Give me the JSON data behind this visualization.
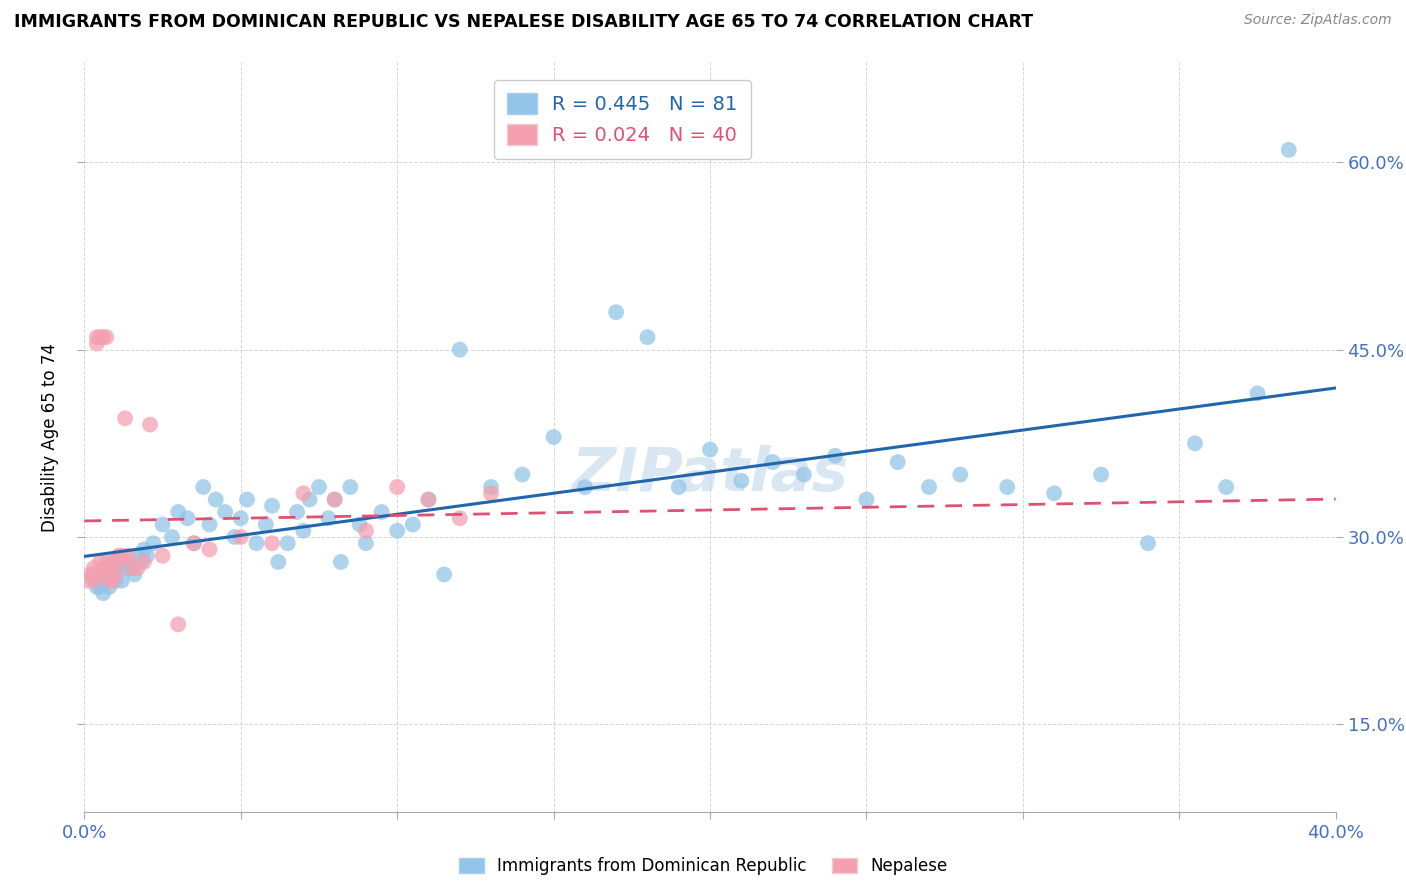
{
  "title": "IMMIGRANTS FROM DOMINICAN REPUBLIC VS NEPALESE DISABILITY AGE 65 TO 74 CORRELATION CHART",
  "source": "Source: ZipAtlas.com",
  "ylabel": "Disability Age 65 to 74",
  "xlim": [
    0.0,
    0.4
  ],
  "ylim": [
    0.08,
    0.68
  ],
  "yticks": [
    0.15,
    0.3,
    0.45,
    0.6
  ],
  "yticklabels": [
    "15.0%",
    "30.0%",
    "45.0%",
    "60.0%"
  ],
  "blue_R": 0.445,
  "blue_N": 81,
  "pink_R": 0.024,
  "pink_N": 40,
  "blue_color": "#92c5e8",
  "pink_color": "#f4a0b0",
  "blue_line_color": "#2166ac",
  "pink_line_color": "#e05070",
  "legend_blue_label": "Immigrants from Dominican Republic",
  "legend_pink_label": "Nepalese",
  "watermark": "ZIPatlas",
  "blue_points_x": [
    0.003,
    0.004,
    0.005,
    0.005,
    0.006,
    0.006,
    0.007,
    0.007,
    0.008,
    0.008,
    0.009,
    0.01,
    0.01,
    0.011,
    0.012,
    0.013,
    0.014,
    0.015,
    0.016,
    0.017,
    0.018,
    0.019,
    0.02,
    0.022,
    0.025,
    0.028,
    0.03,
    0.033,
    0.035,
    0.038,
    0.04,
    0.042,
    0.045,
    0.048,
    0.05,
    0.052,
    0.055,
    0.058,
    0.06,
    0.062,
    0.065,
    0.068,
    0.07,
    0.072,
    0.075,
    0.078,
    0.08,
    0.082,
    0.085,
    0.088,
    0.09,
    0.095,
    0.1,
    0.105,
    0.11,
    0.115,
    0.12,
    0.13,
    0.14,
    0.15,
    0.16,
    0.17,
    0.18,
    0.19,
    0.2,
    0.21,
    0.22,
    0.23,
    0.24,
    0.25,
    0.26,
    0.27,
    0.28,
    0.295,
    0.31,
    0.325,
    0.34,
    0.355,
    0.365,
    0.375,
    0.385
  ],
  "blue_points_y": [
    0.27,
    0.26,
    0.265,
    0.26,
    0.255,
    0.27,
    0.265,
    0.275,
    0.26,
    0.27,
    0.275,
    0.265,
    0.275,
    0.28,
    0.265,
    0.28,
    0.275,
    0.275,
    0.27,
    0.285,
    0.28,
    0.29,
    0.285,
    0.295,
    0.31,
    0.3,
    0.32,
    0.315,
    0.295,
    0.34,
    0.31,
    0.33,
    0.32,
    0.3,
    0.315,
    0.33,
    0.295,
    0.31,
    0.325,
    0.28,
    0.295,
    0.32,
    0.305,
    0.33,
    0.34,
    0.315,
    0.33,
    0.28,
    0.34,
    0.31,
    0.295,
    0.32,
    0.305,
    0.31,
    0.33,
    0.27,
    0.45,
    0.34,
    0.35,
    0.38,
    0.34,
    0.48,
    0.46,
    0.34,
    0.37,
    0.345,
    0.36,
    0.35,
    0.365,
    0.33,
    0.36,
    0.34,
    0.35,
    0.34,
    0.335,
    0.35,
    0.295,
    0.375,
    0.34,
    0.415,
    0.61
  ],
  "pink_points_x": [
    0.001,
    0.002,
    0.003,
    0.003,
    0.004,
    0.004,
    0.005,
    0.005,
    0.005,
    0.006,
    0.006,
    0.007,
    0.007,
    0.008,
    0.008,
    0.009,
    0.009,
    0.01,
    0.01,
    0.011,
    0.012,
    0.013,
    0.014,
    0.015,
    0.017,
    0.019,
    0.021,
    0.025,
    0.03,
    0.035,
    0.04,
    0.05,
    0.06,
    0.07,
    0.08,
    0.09,
    0.1,
    0.11,
    0.12,
    0.13
  ],
  "pink_points_y": [
    0.265,
    0.27,
    0.265,
    0.275,
    0.46,
    0.455,
    0.46,
    0.27,
    0.28,
    0.46,
    0.275,
    0.46,
    0.28,
    0.265,
    0.275,
    0.28,
    0.265,
    0.27,
    0.28,
    0.285,
    0.285,
    0.395,
    0.285,
    0.275,
    0.275,
    0.28,
    0.39,
    0.285,
    0.23,
    0.295,
    0.29,
    0.3,
    0.295,
    0.335,
    0.33,
    0.305,
    0.34,
    0.33,
    0.315,
    0.335
  ]
}
